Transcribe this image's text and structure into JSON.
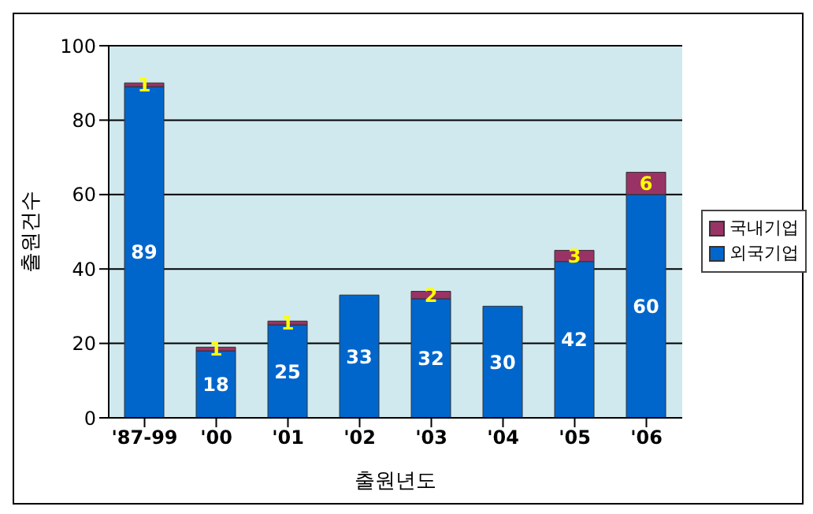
{
  "chart_data": {
    "type": "bar",
    "stacked": true,
    "xlabel": "출원년도",
    "ylabel": "출원건수",
    "categories": [
      "'87-99",
      "'00",
      "'01",
      "'02",
      "'03",
      "'04",
      "'05",
      "'06"
    ],
    "series": [
      {
        "name": "외국기업",
        "color": "#0066cc",
        "values": [
          89,
          18,
          25,
          33,
          32,
          30,
          42,
          60
        ]
      },
      {
        "name": "국내기업",
        "color": "#993366",
        "values": [
          1,
          1,
          1,
          null,
          2,
          null,
          3,
          6
        ]
      }
    ],
    "ylim": [
      0,
      100
    ],
    "yticks": [
      0,
      20,
      40,
      60,
      80,
      100
    ],
    "grid": "y",
    "legend": "right",
    "data_labels": true
  }
}
